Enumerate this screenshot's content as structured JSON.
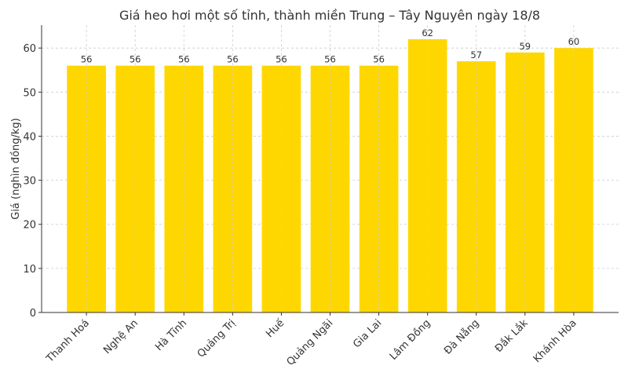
{
  "chart_data": {
    "type": "bar",
    "title": "Giá heo hơi một số tỉnh, thành miền Trung – Tây Nguyên ngày 18/8",
    "xlabel": "",
    "ylabel": "Giá (nghìn đồng/kg)",
    "categories": [
      "Thanh Hoá",
      "Nghệ An",
      "Hà Tĩnh",
      "Quảng Trị",
      "Huế",
      "Quảng Ngãi",
      "Gia Lai",
      "Lâm Đồng",
      "Đà Nẵng",
      "Đắk Lắk",
      "Khánh Hòa"
    ],
    "values": [
      56,
      56,
      56,
      56,
      56,
      56,
      56,
      62,
      57,
      59,
      60
    ],
    "data_labels": [
      "56",
      "56",
      "56",
      "56",
      "56",
      "56",
      "56",
      "62",
      "57",
      "59",
      "60"
    ],
    "ylim": [
      0,
      65.2
    ],
    "yticks": [
      0,
      10,
      20,
      30,
      40,
      50,
      60
    ],
    "grid": true,
    "bar_color": "#FFD700"
  }
}
